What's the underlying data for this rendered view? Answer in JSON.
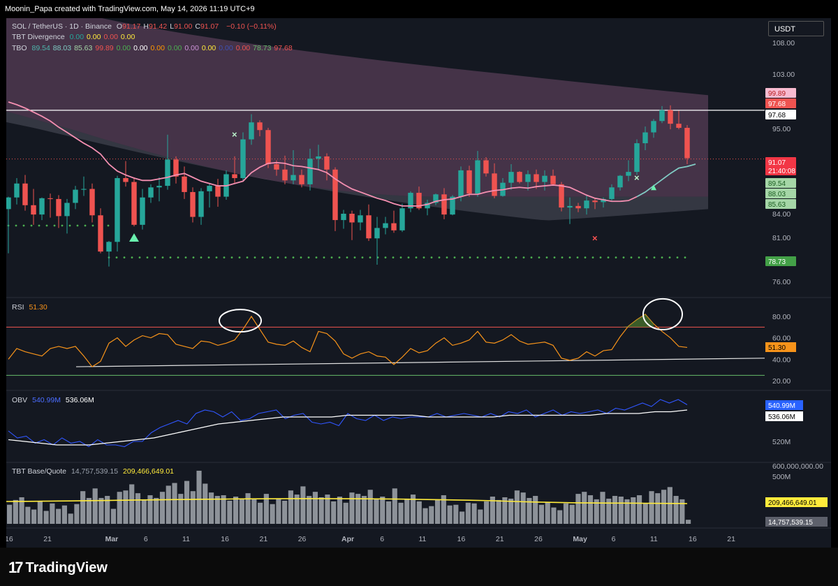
{
  "header": {
    "text": "Moonin_Papa created with TradingView.com, May 14, 2026 11:19 UTC+9"
  },
  "currency_button": "USDT",
  "legend": {
    "symbol": "SOL / TetherUS · 1D · Binance",
    "ohlc": [
      {
        "label": "O",
        "value": "91.17"
      },
      {
        "label": "H",
        "value": "91.42"
      },
      {
        "label": "L",
        "value": "91.00"
      },
      {
        "label": "C",
        "value": "91.07"
      }
    ],
    "change": "−0.10 (−0.11%)",
    "divergence_name": "TBT Divergence",
    "divergence_values": [
      "0.00",
      "0.00",
      "0.00",
      "0.00"
    ],
    "tbo_name": "TBO",
    "tbo_values": [
      "89.54",
      "88.03",
      "85.63",
      "99.89",
      "0.00",
      "0.00",
      "0.00",
      "0.00",
      "0.00",
      "0.00",
      "0.00",
      "0.00",
      "78.73",
      "97.68"
    ],
    "rsi_name": "RSI",
    "rsi_value": "51.30",
    "obv_name": "OBV",
    "obv_value1": "540.99M",
    "obv_value2": "536.06M",
    "bq_name": "TBT Base/Quote",
    "bq_value1": "14,757,539.15",
    "bq_value2": "209,466,649.01"
  },
  "colors": {
    "bg": "#141821",
    "up": "#26a69a",
    "down": "#ef5350",
    "ema": "#f48fb1",
    "rsi": "#f7931a",
    "obv": "#3056ff",
    "yellow": "#ffeb3b",
    "green_dots": "#4caf50"
  },
  "chart_data": {
    "type": "candlestick",
    "symbol": "SOL / TetherUS",
    "interval": "1D",
    "x_labels": [
      {
        "day": 0,
        "label": "16"
      },
      {
        "day": 5,
        "label": "21"
      },
      {
        "day": 13,
        "label": "Mar"
      },
      {
        "day": 18,
        "label": "6"
      },
      {
        "day": 23,
        "label": "11"
      },
      {
        "day": 28,
        "label": "16"
      },
      {
        "day": 33,
        "label": "21"
      },
      {
        "day": 38,
        "label": "26"
      },
      {
        "day": 44,
        "label": "Apr"
      },
      {
        "day": 49,
        "label": "6"
      },
      {
        "day": 54,
        "label": "11"
      },
      {
        "day": 59,
        "label": "16"
      },
      {
        "day": 64,
        "label": "21"
      },
      {
        "day": 69,
        "label": "26"
      },
      {
        "day": 74,
        "label": "May"
      },
      {
        "day": 79,
        "label": "6"
      },
      {
        "day": 84,
        "label": "11"
      },
      {
        "day": 89,
        "label": "16"
      },
      {
        "day": 94,
        "label": "21"
      }
    ],
    "price_axis": {
      "ticks": [
        108.0,
        103.0,
        95.0,
        84.0,
        81.0,
        76.0
      ],
      "tick_labels": [
        "108.00",
        "103.00",
        "95.00",
        "84.00",
        "81.00",
        "76.00"
      ]
    },
    "candles": [
      [
        84.6,
        86.2,
        79.2,
        86.1
      ],
      [
        86.1,
        88.6,
        85.2,
        87.9
      ],
      [
        87.9,
        89.0,
        84.4,
        85.1
      ],
      [
        85.1,
        87.2,
        82.6,
        83.9
      ],
      [
        83.9,
        86.1,
        83.2,
        86.0
      ],
      [
        86.0,
        86.6,
        83.5,
        85.9
      ],
      [
        85.9,
        86.4,
        82.2,
        83.7
      ],
      [
        83.7,
        85.9,
        81.5,
        85.4
      ],
      [
        85.4,
        87.6,
        84.6,
        87.1
      ],
      [
        87.1,
        88.8,
        86.3,
        87.2
      ],
      [
        87.2,
        87.9,
        82.9,
        83.8
      ],
      [
        83.8,
        84.7,
        79.2,
        79.4
      ],
      [
        79.4,
        80.6,
        77.7,
        80.5
      ],
      [
        80.5,
        88.9,
        79.4,
        88.6
      ],
      [
        88.6,
        90.8,
        87.5,
        88.1
      ],
      [
        88.1,
        88.7,
        82.4,
        82.6
      ],
      [
        82.6,
        87.2,
        82.0,
        86.1
      ],
      [
        86.1,
        87.8,
        85.4,
        87.4
      ],
      [
        87.4,
        88.7,
        85.6,
        87.6
      ],
      [
        87.6,
        94.2,
        87.1,
        91.0
      ],
      [
        91.0,
        91.4,
        87.9,
        88.8
      ],
      [
        88.8,
        90.1,
        85.9,
        86.8
      ],
      [
        86.8,
        87.4,
        82.9,
        83.6
      ],
      [
        83.6,
        87.3,
        82.6,
        86.9
      ],
      [
        86.9,
        87.9,
        84.8,
        87.6
      ],
      [
        87.6,
        88.5,
        84.9,
        86.2
      ],
      [
        86.2,
        89.6,
        85.8,
        89.1
      ],
      [
        89.1,
        91.4,
        87.9,
        88.6
      ],
      [
        88.6,
        94.5,
        88.2,
        93.6
      ],
      [
        93.6,
        97.1,
        92.9,
        95.9
      ],
      [
        95.9,
        96.2,
        94.0,
        94.8
      ],
      [
        94.8,
        95.1,
        89.9,
        90.4
      ],
      [
        90.4,
        90.9,
        88.9,
        89.7
      ],
      [
        89.7,
        91.5,
        87.8,
        88.3
      ],
      [
        88.3,
        92.2,
        87.8,
        89.0
      ],
      [
        89.0,
        89.7,
        87.4,
        87.8
      ],
      [
        87.8,
        92.4,
        87.0,
        91.1
      ],
      [
        91.1,
        92.9,
        89.6,
        91.4
      ],
      [
        91.4,
        91.8,
        88.3,
        89.7
      ],
      [
        89.7,
        90.0,
        81.8,
        83.2
      ],
      [
        83.2,
        84.5,
        82.1,
        84.0
      ],
      [
        84.0,
        84.4,
        80.7,
        82.9
      ],
      [
        82.9,
        84.5,
        81.9,
        83.8
      ],
      [
        83.8,
        85.2,
        80.6,
        80.9
      ],
      [
        80.9,
        83.6,
        77.9,
        82.2
      ],
      [
        82.2,
        83.6,
        81.4,
        82.8
      ],
      [
        82.8,
        84.4,
        81.6,
        81.9
      ],
      [
        81.9,
        85.3,
        81.7,
        84.7
      ],
      [
        84.7,
        86.9,
        84.2,
        86.7
      ],
      [
        86.7,
        87.5,
        84.5,
        84.7
      ],
      [
        84.7,
        85.8,
        83.8,
        85.4
      ],
      [
        85.4,
        86.6,
        85.1,
        86.5
      ],
      [
        86.5,
        87.3,
        83.3,
        83.9
      ],
      [
        83.9,
        86.4,
        83.8,
        86.2
      ],
      [
        86.2,
        90.1,
        85.6,
        89.6
      ],
      [
        89.6,
        90.2,
        86.2,
        86.6
      ],
      [
        86.6,
        92.1,
        86.2,
        90.9
      ],
      [
        90.9,
        91.3,
        88.8,
        89.2
      ],
      [
        89.2,
        90.5,
        86.0,
        86.3
      ],
      [
        86.3,
        88.6,
        86.2,
        88.0
      ],
      [
        88.0,
        90.4,
        87.1,
        89.4
      ],
      [
        89.4,
        89.5,
        87.9,
        88.1
      ],
      [
        88.1,
        89.6,
        87.0,
        89.1
      ],
      [
        89.1,
        89.7,
        87.2,
        88.1
      ],
      [
        88.1,
        89.6,
        87.0,
        88.9
      ],
      [
        88.9,
        89.7,
        87.6,
        87.8
      ],
      [
        87.8,
        88.1,
        84.3,
        84.8
      ],
      [
        84.8,
        86.1,
        82.7,
        85.0
      ],
      [
        85.0,
        85.4,
        84.2,
        84.7
      ],
      [
        84.7,
        86.5,
        83.9,
        85.7
      ],
      [
        85.7,
        86.0,
        84.6,
        85.5
      ],
      [
        85.5,
        86.1,
        84.8,
        85.9
      ],
      [
        85.9,
        87.8,
        85.7,
        87.4
      ],
      [
        87.4,
        89.0,
        87.0,
        88.9
      ],
      [
        88.9,
        90.9,
        88.2,
        89.4
      ],
      [
        89.4,
        93.6,
        89.0,
        93.1
      ],
      [
        93.1,
        95.3,
        92.2,
        94.5
      ],
      [
        94.5,
        96.4,
        93.8,
        96.1
      ],
      [
        96.1,
        98.3,
        95.8,
        97.7
      ],
      [
        97.7,
        98.4,
        94.9,
        95.7
      ],
      [
        95.7,
        97.6,
        94.9,
        95.1
      ],
      [
        95.1,
        95.5,
        90.4,
        91.17
      ]
    ],
    "volumes": [
      28,
      35,
      39,
      25,
      21,
      33,
      19,
      30,
      22,
      27,
      15,
      29,
      48,
      38,
      52,
      38,
      41,
      22,
      47,
      49,
      58,
      45,
      36,
      42,
      38,
      47,
      56,
      60,
      44,
      63,
      48,
      78,
      59,
      46,
      41,
      42,
      34,
      40,
      36,
      45,
      37,
      31,
      44,
      29,
      37,
      34,
      49,
      43,
      55,
      41,
      47,
      39,
      43,
      33,
      40,
      31,
      46,
      44,
      41,
      50,
      37,
      40,
      33,
      52,
      31,
      37,
      43,
      33,
      23,
      26,
      36,
      42,
      27,
      28,
      18,
      31,
      30,
      21,
      33,
      40,
      35,
      39,
      37,
      49,
      46,
      38,
      41,
      28,
      32,
      24,
      20,
      30,
      28,
      44,
      47,
      42,
      36,
      47,
      37,
      41,
      40,
      36,
      39,
      42,
      30,
      48,
      45,
      50,
      54,
      41,
      36,
      6
    ],
    "ema_tbo": [
      98.9,
      98.5,
      98.0,
      97.4,
      96.8,
      96.1,
      95.2,
      94.5,
      93.8,
      93.1,
      92.5,
      91.7,
      90.4,
      89.5,
      89.0,
      88.6,
      88.3,
      88.3,
      88.5,
      88.7,
      89.0,
      89.2,
      88.7,
      88.2,
      87.9,
      87.6,
      87.6,
      87.9,
      88.2,
      89.3,
      90.0,
      90.5,
      90.6,
      90.5,
      90.2,
      90.1,
      89.9,
      89.7,
      89.3,
      88.5,
      87.8,
      87.2,
      86.8,
      86.4,
      86.0,
      85.7,
      85.3,
      85.0,
      85.0,
      85.0,
      85.2,
      85.6,
      85.8,
      85.9,
      86.2,
      86.5,
      86.5,
      86.8,
      87.0,
      87.1,
      87.3,
      87.4,
      87.3,
      87.5,
      87.6,
      87.7,
      87.6,
      87.4,
      86.9,
      86.4,
      86.0,
      85.8,
      85.6,
      85.6,
      85.7,
      86.2,
      86.8,
      87.6,
      88.4,
      89.2,
      89.9,
      90.1,
      90.4
    ],
    "tbo_support_level": 78.73,
    "tbo_support_level_early": 82.5,
    "resistance_level": 97.68,
    "current_price": 91.07,
    "cloud": {
      "upper_start": 118,
      "upper_end": 99.9,
      "lower_start": 97.6,
      "lower_end": 86.2
    },
    "price_labels": [
      "99.89",
      "97.68",
      "91.07",
      "21:40:08",
      "89.54",
      "88.03",
      "85.63",
      "78.73"
    ],
    "rsi": {
      "values": [
        40,
        50,
        47,
        45,
        43,
        50,
        52,
        50,
        52,
        43,
        33,
        38,
        55,
        60,
        52,
        58,
        62,
        60,
        64,
        63,
        54,
        52,
        50,
        57,
        56,
        53,
        55,
        58,
        68,
        80,
        68,
        56,
        54,
        53,
        57,
        51,
        47,
        66,
        64,
        57,
        45,
        41,
        45,
        47,
        43,
        42,
        35,
        42,
        50,
        46,
        48,
        55,
        60,
        53,
        55,
        58,
        66,
        56,
        55,
        58,
        63,
        57,
        54,
        55,
        56,
        53,
        41,
        39,
        41,
        47,
        43,
        48,
        49,
        61,
        71,
        77,
        82,
        73,
        66,
        60,
        52,
        51
      ],
      "ticks": [
        80,
        60,
        40,
        20
      ],
      "tick_labels": [
        "80.00",
        "60.00",
        "40.00",
        "20.00"
      ],
      "overbought": 70,
      "oversold": 25,
      "trend_line": {
        "start": 25,
        "end": 41
      }
    },
    "obv": {
      "values": [
        526,
        522,
        523,
        519,
        521,
        518,
        522,
        519,
        520,
        517,
        521,
        518,
        518,
        517,
        520,
        520,
        525,
        528,
        530,
        532,
        530,
        536,
        538,
        537,
        534,
        537,
        532,
        533,
        536,
        537,
        538,
        533,
        535,
        536,
        531,
        530,
        531,
        529,
        536,
        533,
        532,
        535,
        532,
        534,
        533,
        534,
        534,
        534,
        536,
        534,
        535,
        536,
        535,
        534,
        536,
        534,
        537,
        536,
        538,
        534,
        536,
        538,
        535,
        537,
        536,
        537,
        538,
        536,
        539,
        538,
        540,
        542,
        540,
        544,
        542,
        544,
        541
      ],
      "ma": [
        521,
        520,
        519,
        518,
        518,
        518,
        519,
        520,
        521,
        522,
        524,
        526,
        528,
        530,
        531,
        532,
        533,
        534,
        534,
        534,
        534,
        535,
        535,
        535,
        535,
        535,
        534,
        534,
        534,
        534,
        534,
        535,
        535,
        535,
        535,
        535,
        535,
        536,
        536,
        536,
        537,
        537,
        538
      ],
      "ticks": [
        520,
        500
      ],
      "tick_labels": [
        "520M",
        "500M"
      ]
    },
    "base_quote": {
      "ticks": [
        "600,000,000.00"
      ],
      "ma_level": 0.36
    }
  }
}
